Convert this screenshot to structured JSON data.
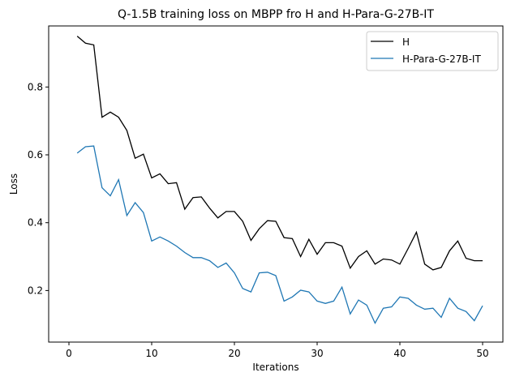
{
  "chart_data": {
    "type": "line",
    "title": "Q-1.5B training loss on MBPP fro H and H-Para-G-27B-IT",
    "xlabel": "Iterations",
    "ylabel": "Loss",
    "xlim": [
      -2.45,
      52.45
    ],
    "ylim": [
      0.048,
      0.98
    ],
    "xticks": [
      0,
      10,
      20,
      30,
      40,
      50
    ],
    "yticks": [
      0.2,
      0.4,
      0.6,
      0.8
    ],
    "grid": false,
    "legend_position": "top-right",
    "x": [
      1,
      2,
      3,
      4,
      5,
      6,
      7,
      8,
      9,
      10,
      11,
      12,
      13,
      14,
      15,
      16,
      17,
      18,
      19,
      20,
      21,
      22,
      23,
      24,
      25,
      26,
      27,
      28,
      29,
      30,
      31,
      32,
      33,
      34,
      35,
      36,
      37,
      38,
      39,
      40,
      41,
      42,
      43,
      44,
      45,
      46,
      47,
      48,
      49,
      50
    ],
    "series": [
      {
        "name": "H",
        "color": "#000000",
        "values": [
          0.95,
          0.929,
          0.924,
          0.711,
          0.726,
          0.711,
          0.672,
          0.59,
          0.602,
          0.532,
          0.544,
          0.515,
          0.518,
          0.44,
          0.474,
          0.476,
          0.443,
          0.414,
          0.433,
          0.433,
          0.404,
          0.348,
          0.382,
          0.406,
          0.404,
          0.356,
          0.353,
          0.3,
          0.351,
          0.307,
          0.341,
          0.341,
          0.331,
          0.266,
          0.3,
          0.317,
          0.278,
          0.293,
          0.29,
          0.278,
          0.324,
          0.372,
          0.278,
          0.261,
          0.268,
          0.317,
          0.346,
          0.295,
          0.288,
          0.288
        ]
      },
      {
        "name": "H-Para-G-27B-IT",
        "color": "#1f77b4",
        "values": [
          0.605,
          0.624,
          0.626,
          0.503,
          0.479,
          0.527,
          0.421,
          0.459,
          0.43,
          0.346,
          0.358,
          0.346,
          0.331,
          0.312,
          0.297,
          0.297,
          0.288,
          0.268,
          0.281,
          0.252,
          0.206,
          0.196,
          0.252,
          0.254,
          0.244,
          0.169,
          0.181,
          0.201,
          0.196,
          0.169,
          0.162,
          0.169,
          0.21,
          0.131,
          0.172,
          0.157,
          0.104,
          0.148,
          0.152,
          0.181,
          0.177,
          0.157,
          0.145,
          0.148,
          0.121,
          0.177,
          0.148,
          0.138,
          0.111,
          0.155
        ]
      }
    ]
  }
}
